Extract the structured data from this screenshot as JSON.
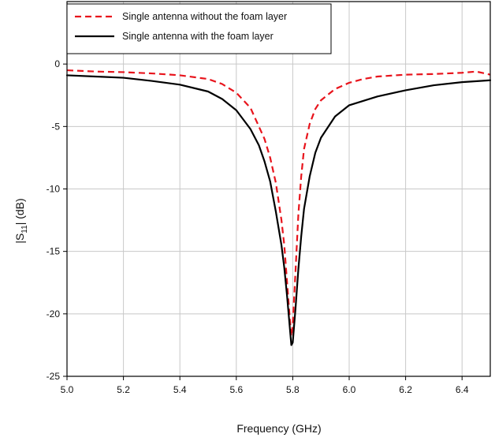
{
  "chart_data": {
    "type": "line",
    "xlabel": "Frequency (GHz)",
    "ylabel_main": "|S",
    "ylabel_sub": "11",
    "ylabel_rest": "| (dB)",
    "xlim": [
      5.0,
      6.5
    ],
    "ylim": [
      -25,
      5
    ],
    "x_ticks": [
      "5.0",
      "5.2",
      "5.4",
      "5.6",
      "5.8",
      "6.0",
      "6.2",
      "6.4"
    ],
    "y_ticks": [
      "0",
      "-5",
      "-10",
      "-15",
      "-20",
      "-25"
    ],
    "grid": true,
    "legend_position": "top-left",
    "series": [
      {
        "name": "Single antenna without the foam layer",
        "color": "#e8141c",
        "dash": "dashed",
        "x": [
          5.0,
          5.1,
          5.2,
          5.3,
          5.4,
          5.5,
          5.55,
          5.6,
          5.65,
          5.7,
          5.72,
          5.74,
          5.76,
          5.77,
          5.78,
          5.79,
          5.795,
          5.8,
          5.81,
          5.82,
          5.83,
          5.84,
          5.86,
          5.88,
          5.9,
          5.95,
          6.0,
          6.05,
          6.1,
          6.2,
          6.3,
          6.4,
          6.45,
          6.5
        ],
        "y": [
          -0.5,
          -0.6,
          -0.65,
          -0.75,
          -0.9,
          -1.2,
          -1.6,
          -2.3,
          -3.5,
          -6.0,
          -7.5,
          -9.5,
          -12.5,
          -14.5,
          -17.5,
          -20.5,
          -21.8,
          -20.8,
          -16.5,
          -12.0,
          -9.0,
          -6.8,
          -4.8,
          -3.6,
          -2.9,
          -2.0,
          -1.5,
          -1.2,
          -1.0,
          -0.85,
          -0.8,
          -0.7,
          -0.6,
          -0.85
        ]
      },
      {
        "name": "Single antenna with the foam layer",
        "color": "#000000",
        "dash": "solid",
        "x": [
          5.0,
          5.1,
          5.2,
          5.3,
          5.4,
          5.5,
          5.55,
          5.6,
          5.65,
          5.68,
          5.7,
          5.72,
          5.74,
          5.76,
          5.77,
          5.78,
          5.79,
          5.795,
          5.8,
          5.81,
          5.82,
          5.83,
          5.84,
          5.86,
          5.88,
          5.9,
          5.95,
          6.0,
          6.1,
          6.2,
          6.3,
          6.4,
          6.5
        ],
        "y": [
          -0.9,
          -1.0,
          -1.1,
          -1.35,
          -1.65,
          -2.2,
          -2.8,
          -3.7,
          -5.2,
          -6.5,
          -7.8,
          -9.4,
          -11.8,
          -14.5,
          -16.3,
          -18.6,
          -21.2,
          -22.5,
          -22.3,
          -19.5,
          -16.4,
          -13.8,
          -11.6,
          -9.0,
          -7.1,
          -5.9,
          -4.2,
          -3.3,
          -2.6,
          -2.1,
          -1.7,
          -1.45,
          -1.3
        ]
      }
    ]
  }
}
